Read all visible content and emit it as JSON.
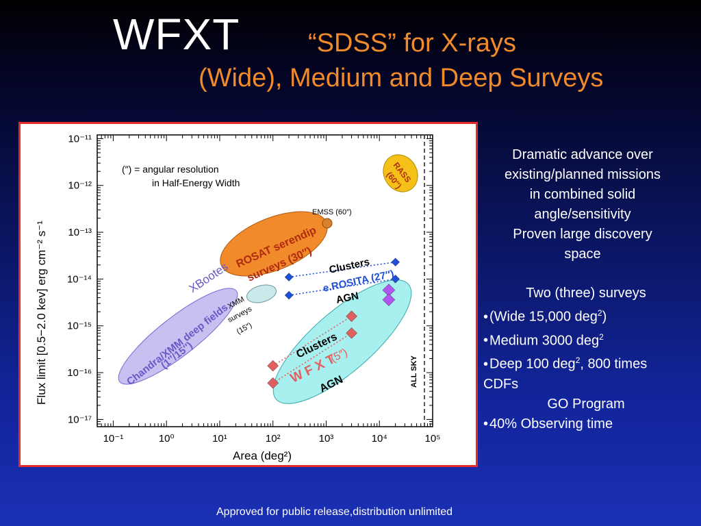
{
  "header": {
    "title": "WFXT",
    "subtitle": "“SDSS” for X-rays",
    "subtitle2": "(Wide), Medium and Deep Surveys"
  },
  "side_text": {
    "lines": [
      "Dramatic advance over",
      "existing/planned missions",
      "in combined solid",
      "angle/sensitivity",
      "Proven large discovery",
      "space"
    ]
  },
  "surveys": {
    "heading": "Two (three) surveys",
    "wide": "(Wide 15,000 deg",
    "wide_tail": ")",
    "medium": "Medium 3000 deg",
    "deep": "Deep 100 deg",
    "deep_tail": ", 800 times",
    "cdfs": "CDFs",
    "go": "GO Program",
    "observing": "40% Observing time",
    "sup": "2"
  },
  "footer": "Approved for public release,distribution unlimited",
  "chart_data": {
    "type": "scatter",
    "xlabel": "Area (deg²)",
    "ylabel": "Flux limit [0.5−2.0 kev] erg cm⁻² s⁻¹",
    "xscale": "log",
    "yscale": "log",
    "xlim": [
      0.05,
      100000
    ],
    "ylim": [
      7e-18,
      1.2e-11
    ],
    "x_ticks": [
      "10⁻¹",
      "10⁰",
      "10¹",
      "10²",
      "10³",
      "10⁴",
      "10⁵"
    ],
    "y_ticks": [
      "10⁻¹¹",
      "10⁻¹²",
      "10⁻¹³",
      "10⁻¹⁴",
      "10⁻¹⁵",
      "10⁻¹⁶",
      "10⁻¹⁷"
    ],
    "note_line1": "(″) = angular resolution",
    "note_line2": "in Half-Energy Width",
    "all_sky_label": "ALL SKY",
    "all_sky_x": 41253,
    "regions": [
      {
        "label": "RASS (60″)",
        "color": "#f5c018"
      },
      {
        "label": "EMSS (60″)",
        "color": "#d9802e"
      },
      {
        "label": "ROSAT serendip surveys (30″)",
        "color": "#f08a2a"
      },
      {
        "label": "XBootes",
        "color": "#c8c0f0"
      },
      {
        "label": "Chandra/XMM deep fields (1″/15″)",
        "color": "#c8c0f0"
      },
      {
        "label": "XMM surveys (15″)",
        "color": "#cbe8ea"
      },
      {
        "label": "WFXT (5″)",
        "color": "#a8f0f0"
      }
    ],
    "labels": {
      "rass": "RASS",
      "rass_res": "(60″)",
      "emss": "EMSS (60″)",
      "rosat1": "ROSAT serendip",
      "rosat2": "surveys (30″)",
      "xbootes": "XBootes",
      "chandra1": "Chandra/XMM deep fields",
      "chandra2": "(1″/15″)",
      "xmm1": "XMM",
      "xmm2": "surveys",
      "xmm3": "(15″)",
      "erosita_clusters": "Clusters",
      "erosita": "e.ROSITA (27″)",
      "erosita_agn": "AGN",
      "wfxt_clusters": "Clusters",
      "wfxt": "W F X T",
      "wfxt_res": "(5″)",
      "wfxt_agn": "AGN"
    },
    "series": [
      {
        "name": "e.ROSITA",
        "color": "#1f4fd8",
        "marker": "diamond",
        "points": [
          {
            "x": 200,
            "y": 1.1e-14
          },
          {
            "x": 20000,
            "y": 2.3e-14
          },
          {
            "x": 200,
            "y": 4.5e-15
          },
          {
            "x": 20000,
            "y": 1e-14
          }
        ]
      },
      {
        "name": "WFXT",
        "color": "#e06060",
        "marker": "diamond",
        "points": [
          {
            "x": 100,
            "y": 1.4e-16
          },
          {
            "x": 3000,
            "y": 1.6e-15
          },
          {
            "x": 100,
            "y": 6e-17
          },
          {
            "x": 3000,
            "y": 7e-16
          }
        ]
      },
      {
        "name": "WFXT wide",
        "color": "#b055f0",
        "marker": "diamond",
        "points": [
          {
            "x": 15000,
            "y": 5.8e-15
          },
          {
            "x": 15000,
            "y": 3.6e-15
          }
        ]
      }
    ]
  }
}
